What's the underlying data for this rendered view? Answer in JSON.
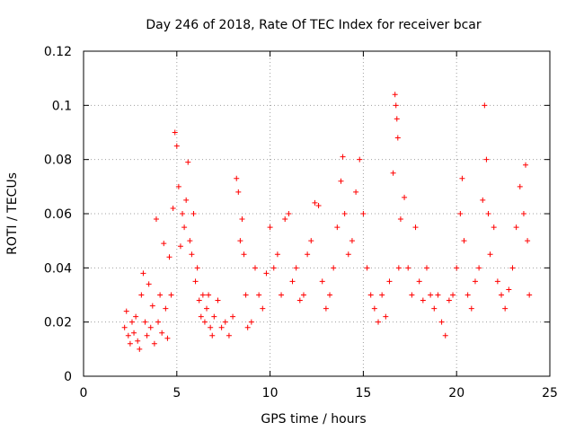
{
  "chart_data": {
    "type": "scatter",
    "title": "Day 246 of 2018, Rate Of TEC Index for receiver bcar",
    "xlabel": "GPS time / hours",
    "ylabel": "ROTI / TECUs",
    "xlim": [
      0,
      25
    ],
    "ylim": [
      0,
      0.12
    ],
    "xticks": [
      0,
      5,
      10,
      15,
      20,
      25
    ],
    "xtick_labels": [
      "0",
      "5",
      "10",
      "15",
      "20",
      "25"
    ],
    "yticks": [
      0,
      0.02,
      0.04,
      0.06,
      0.08,
      0.1,
      0.12
    ],
    "ytick_labels": [
      "0",
      "0.02",
      "0.04",
      "0.06",
      "0.08",
      "0.1",
      "0.12"
    ],
    "grid": true,
    "marker": "+",
    "color": "#ff0000",
    "series": [
      {
        "name": "ROTI",
        "points": [
          [
            2.2,
            0.018
          ],
          [
            2.3,
            0.024
          ],
          [
            2.4,
            0.015
          ],
          [
            2.5,
            0.012
          ],
          [
            2.6,
            0.02
          ],
          [
            2.7,
            0.016
          ],
          [
            2.8,
            0.022
          ],
          [
            2.9,
            0.013
          ],
          [
            3.0,
            0.01
          ],
          [
            3.1,
            0.03
          ],
          [
            3.2,
            0.038
          ],
          [
            3.3,
            0.02
          ],
          [
            3.4,
            0.015
          ],
          [
            3.5,
            0.034
          ],
          [
            3.6,
            0.018
          ],
          [
            3.7,
            0.026
          ],
          [
            3.8,
            0.012
          ],
          [
            3.9,
            0.058
          ],
          [
            4.0,
            0.02
          ],
          [
            4.1,
            0.03
          ],
          [
            4.2,
            0.016
          ],
          [
            4.3,
            0.049
          ],
          [
            4.4,
            0.025
          ],
          [
            4.5,
            0.014
          ],
          [
            4.6,
            0.044
          ],
          [
            4.7,
            0.03
          ],
          [
            4.8,
            0.062
          ],
          [
            4.9,
            0.09
          ],
          [
            5.0,
            0.085
          ],
          [
            5.1,
            0.07
          ],
          [
            5.2,
            0.048
          ],
          [
            5.3,
            0.06
          ],
          [
            5.4,
            0.055
          ],
          [
            5.5,
            0.065
          ],
          [
            5.6,
            0.079
          ],
          [
            5.7,
            0.05
          ],
          [
            5.8,
            0.045
          ],
          [
            5.9,
            0.06
          ],
          [
            6.0,
            0.035
          ],
          [
            6.1,
            0.04
          ],
          [
            6.2,
            0.028
          ],
          [
            6.3,
            0.022
          ],
          [
            6.4,
            0.03
          ],
          [
            6.5,
            0.02
          ],
          [
            6.6,
            0.025
          ],
          [
            6.7,
            0.03
          ],
          [
            6.8,
            0.018
          ],
          [
            6.9,
            0.015
          ],
          [
            7.0,
            0.022
          ],
          [
            7.2,
            0.028
          ],
          [
            7.4,
            0.018
          ],
          [
            7.6,
            0.02
          ],
          [
            7.8,
            0.015
          ],
          [
            8.0,
            0.022
          ],
          [
            8.2,
            0.073
          ],
          [
            8.3,
            0.068
          ],
          [
            8.4,
            0.05
          ],
          [
            8.5,
            0.058
          ],
          [
            8.6,
            0.045
          ],
          [
            8.7,
            0.03
          ],
          [
            8.8,
            0.018
          ],
          [
            9.0,
            0.02
          ],
          [
            9.2,
            0.04
          ],
          [
            9.4,
            0.03
          ],
          [
            9.6,
            0.025
          ],
          [
            9.8,
            0.038
          ],
          [
            10.0,
            0.055
          ],
          [
            10.2,
            0.04
          ],
          [
            10.4,
            0.045
          ],
          [
            10.6,
            0.03
          ],
          [
            10.8,
            0.058
          ],
          [
            11.0,
            0.06
          ],
          [
            11.2,
            0.035
          ],
          [
            11.4,
            0.04
          ],
          [
            11.6,
            0.028
          ],
          [
            11.8,
            0.03
          ],
          [
            12.0,
            0.045
          ],
          [
            12.2,
            0.05
          ],
          [
            12.4,
            0.064
          ],
          [
            12.6,
            0.063
          ],
          [
            12.8,
            0.035
          ],
          [
            13.0,
            0.025
          ],
          [
            13.2,
            0.03
          ],
          [
            13.4,
            0.04
          ],
          [
            13.6,
            0.055
          ],
          [
            13.8,
            0.072
          ],
          [
            13.9,
            0.081
          ],
          [
            14.0,
            0.06
          ],
          [
            14.2,
            0.045
          ],
          [
            14.4,
            0.05
          ],
          [
            14.6,
            0.068
          ],
          [
            14.8,
            0.08
          ],
          [
            15.0,
            0.06
          ],
          [
            15.2,
            0.04
          ],
          [
            15.4,
            0.03
          ],
          [
            15.6,
            0.025
          ],
          [
            15.8,
            0.02
          ],
          [
            16.0,
            0.03
          ],
          [
            16.2,
            0.022
          ],
          [
            16.4,
            0.035
          ],
          [
            16.6,
            0.075
          ],
          [
            16.7,
            0.104
          ],
          [
            16.75,
            0.1
          ],
          [
            16.8,
            0.095
          ],
          [
            16.85,
            0.088
          ],
          [
            16.9,
            0.04
          ],
          [
            17.0,
            0.058
          ],
          [
            17.2,
            0.066
          ],
          [
            17.4,
            0.04
          ],
          [
            17.6,
            0.03
          ],
          [
            17.8,
            0.055
          ],
          [
            18.0,
            0.035
          ],
          [
            18.2,
            0.028
          ],
          [
            18.4,
            0.04
          ],
          [
            18.6,
            0.03
          ],
          [
            18.8,
            0.025
          ],
          [
            19.0,
            0.03
          ],
          [
            19.2,
            0.02
          ],
          [
            19.4,
            0.015
          ],
          [
            19.6,
            0.028
          ],
          [
            19.8,
            0.03
          ],
          [
            20.0,
            0.04
          ],
          [
            20.2,
            0.06
          ],
          [
            20.3,
            0.073
          ],
          [
            20.4,
            0.05
          ],
          [
            20.6,
            0.03
          ],
          [
            20.8,
            0.025
          ],
          [
            21.0,
            0.035
          ],
          [
            21.2,
            0.04
          ],
          [
            21.4,
            0.065
          ],
          [
            21.5,
            0.1
          ],
          [
            21.6,
            0.08
          ],
          [
            21.7,
            0.06
          ],
          [
            21.8,
            0.045
          ],
          [
            22.0,
            0.055
          ],
          [
            22.2,
            0.035
          ],
          [
            22.4,
            0.03
          ],
          [
            22.6,
            0.025
          ],
          [
            22.8,
            0.032
          ],
          [
            23.0,
            0.04
          ],
          [
            23.2,
            0.055
          ],
          [
            23.4,
            0.07
          ],
          [
            23.6,
            0.06
          ],
          [
            23.7,
            0.078
          ],
          [
            23.8,
            0.05
          ],
          [
            23.9,
            0.03
          ]
        ]
      }
    ]
  }
}
